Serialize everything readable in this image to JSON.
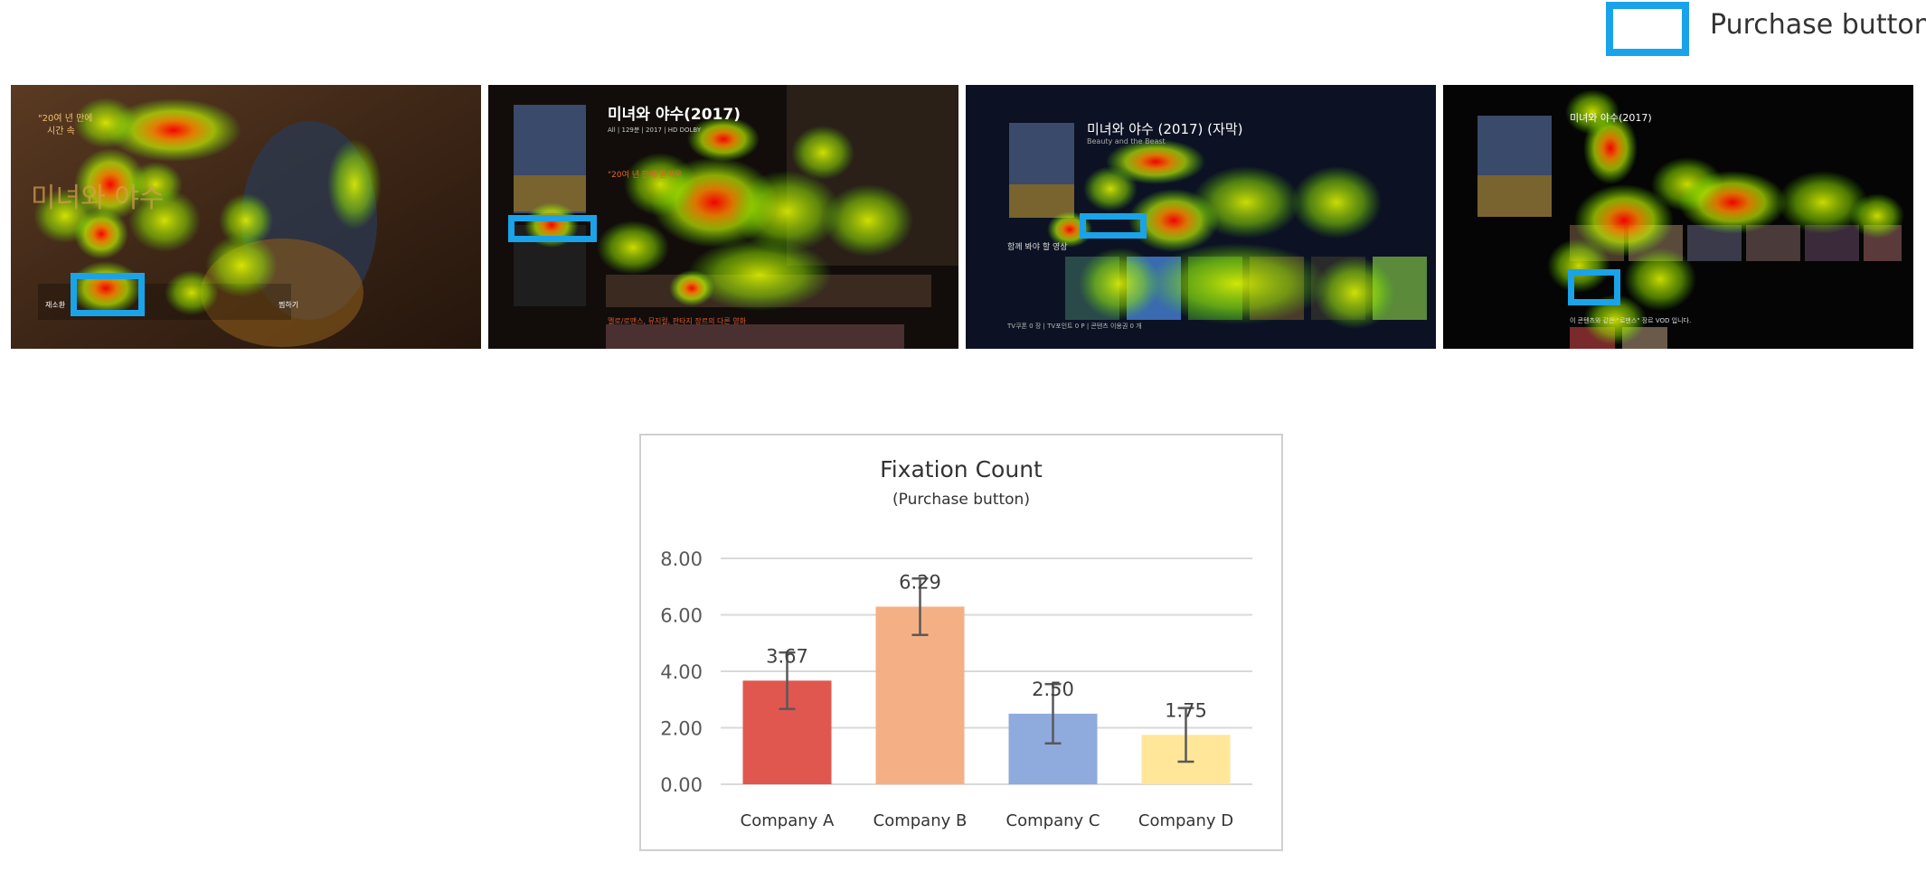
{
  "legend": {
    "label": "Purchase button",
    "color": "#1aa3e8"
  },
  "screens": [
    {
      "name": "Company A",
      "bg": "#3a2416",
      "texts": [
        "\"20여 년 만에",
        "시간 속",
        "미녀와 야수",
        "재소환",
        "찜하기"
      ]
    },
    {
      "name": "Company B",
      "bg": "#120d0b",
      "texts": [
        "미녀와 야수(2017)",
        "All | 129분 | 2017 | HD DOLBY",
        "\"20여 년 만에 돌아온",
        "멜로/로맨스, 뮤지컬, 판타지 장르의 다른 영화"
      ]
    },
    {
      "name": "Company C",
      "bg": "#05070f",
      "texts": [
        "미녀와 야수 (2017) (자막)",
        "Beauty and the Beast",
        "함께 봐야 할 영상",
        "TV쿠폰 0 장 | TV포인트 0 P | 콘텐츠 이용권 0 개"
      ]
    },
    {
      "name": "Company D",
      "bg": "#050505",
      "texts": [
        "미녀와 야수(2017)",
        "이 콘텐츠와 같은 \"로맨스\" 장르 VOD 입니다."
      ]
    }
  ],
  "chart_data": {
    "type": "bar",
    "title": "Fixation Count",
    "subtitle": "(Purchase button)",
    "categories": [
      "Company A",
      "Company B",
      "Company C",
      "Company D"
    ],
    "values": [
      3.67,
      6.29,
      2.5,
      1.75
    ],
    "data_labels": [
      "3.67",
      "6.29",
      "2.50",
      "1.75"
    ],
    "error_bars": [
      1.0,
      1.0,
      1.05,
      0.95
    ],
    "colors": [
      "#e05750",
      "#f4b084",
      "#8faadc",
      "#ffe699"
    ],
    "ylim": [
      0,
      8
    ],
    "yticks": [
      "0.00",
      "2.00",
      "4.00",
      "6.00",
      "8.00"
    ],
    "grid": true
  }
}
